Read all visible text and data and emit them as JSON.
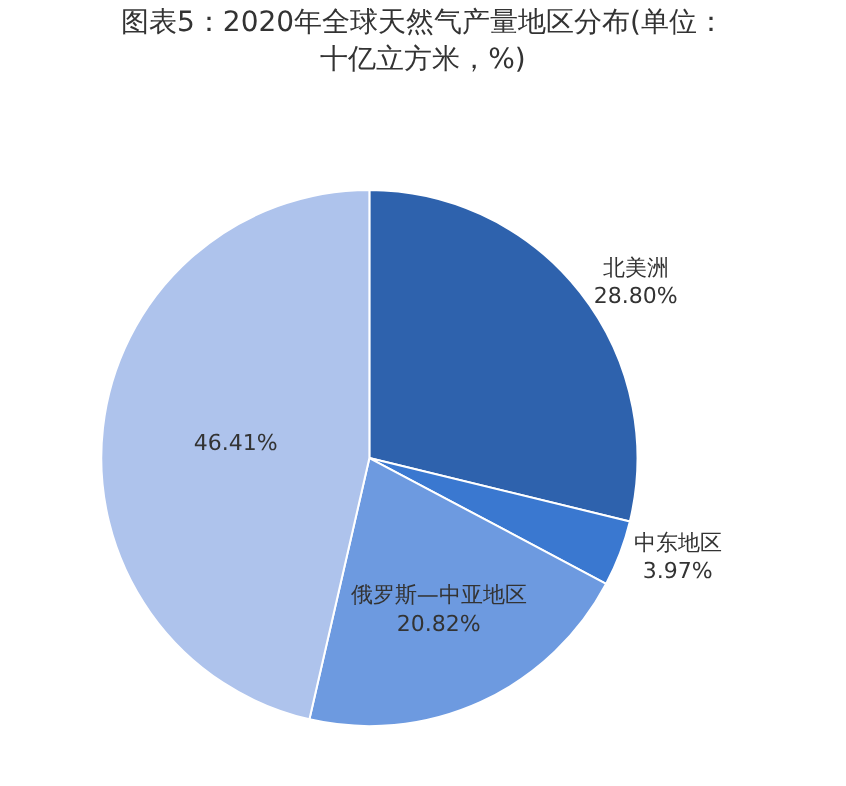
{
  "chart_data": {
    "type": "pie",
    "title": "图表5：2020年全球天然气产量地区分布(单位：十亿立方米，%)",
    "categories": [
      "北美洲",
      "中东地区",
      "俄罗斯—中亚地区",
      null
    ],
    "values": [
      28.8,
      3.97,
      20.82,
      46.41
    ],
    "value_labels": [
      "28.80%",
      "3.97%",
      "20.82%",
      "46.41%"
    ],
    "colors": [
      "#2e62ad",
      "#3a78d0",
      "#6d9ae0",
      "#aec3ec"
    ],
    "legend": false
  }
}
